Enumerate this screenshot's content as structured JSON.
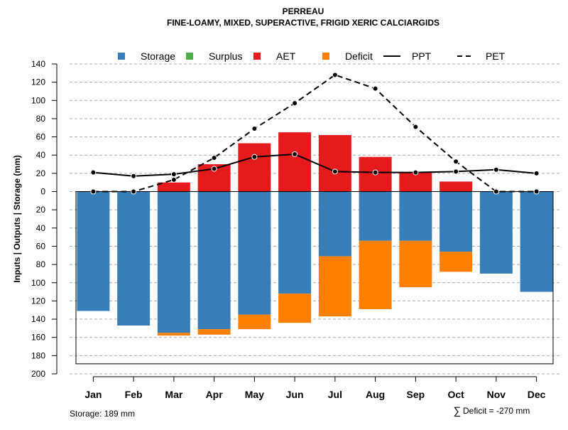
{
  "chart_data": {
    "type": "bar",
    "title": "PERREAU",
    "subtitle": "FINE-LOAMY, MIXED, SUPERACTIVE, FRIGID XERIC CALCIARGIDS",
    "ylabel": "Inputs | Outputs | Storage    (mm)",
    "categories": [
      "Jan",
      "Feb",
      "Mar",
      "Apr",
      "May",
      "Jun",
      "Jul",
      "Aug",
      "Sep",
      "Oct",
      "Nov",
      "Dec"
    ],
    "ylim": [
      -200,
      140
    ],
    "yticks": [
      140,
      120,
      100,
      80,
      60,
      40,
      20,
      0,
      -20,
      -40,
      -60,
      -80,
      -100,
      -120,
      -140,
      -160,
      -180,
      -200
    ],
    "ytick_labels": [
      "140",
      "120",
      "100",
      "80",
      "60",
      "40",
      "20",
      "0",
      "20",
      "40",
      "60",
      "80",
      "100",
      "120",
      "140",
      "160",
      "180",
      "200"
    ],
    "grid": true,
    "storage_capacity": 189,
    "colors": {
      "storage": "#377eb8",
      "surplus": "#4daf4a",
      "aet": "#e41a1c",
      "deficit": "#ff7f00",
      "line": "#000000",
      "grid": "#aaaaaa"
    },
    "legend": [
      {
        "label": "Storage",
        "kind": "box",
        "color": "#377eb8"
      },
      {
        "label": "Surplus",
        "kind": "box",
        "color": "#4daf4a"
      },
      {
        "label": "AET",
        "kind": "box",
        "color": "#e41a1c"
      },
      {
        "label": "Deficit",
        "kind": "box",
        "color": "#ff7f00"
      },
      {
        "label": "PPT",
        "kind": "solid"
      },
      {
        "label": "PET",
        "kind": "dashed"
      }
    ],
    "series": [
      {
        "name": "AET",
        "values": [
          0,
          0,
          10,
          30,
          53,
          65,
          62,
          38,
          21,
          11,
          0,
          0
        ]
      },
      {
        "name": "Storage",
        "values": [
          131,
          147,
          155,
          151,
          135,
          112,
          71,
          54,
          54,
          66,
          90,
          110
        ]
      },
      {
        "name": "Deficit",
        "values": [
          0,
          0,
          3,
          6,
          16,
          32,
          66,
          75,
          51,
          22,
          0,
          0
        ]
      },
      {
        "name": "PPT",
        "values": [
          21,
          17,
          19,
          25,
          38,
          41,
          22,
          21,
          21,
          22,
          24,
          20
        ]
      },
      {
        "name": "PET",
        "values": [
          0,
          0,
          13,
          37,
          69,
          97,
          128,
          113,
          71,
          33,
          0,
          0
        ]
      }
    ],
    "footnote_left": "Storage: 189 mm",
    "footnote_right_symbol": "∑",
    "footnote_right": "Deficit = -270 mm"
  }
}
